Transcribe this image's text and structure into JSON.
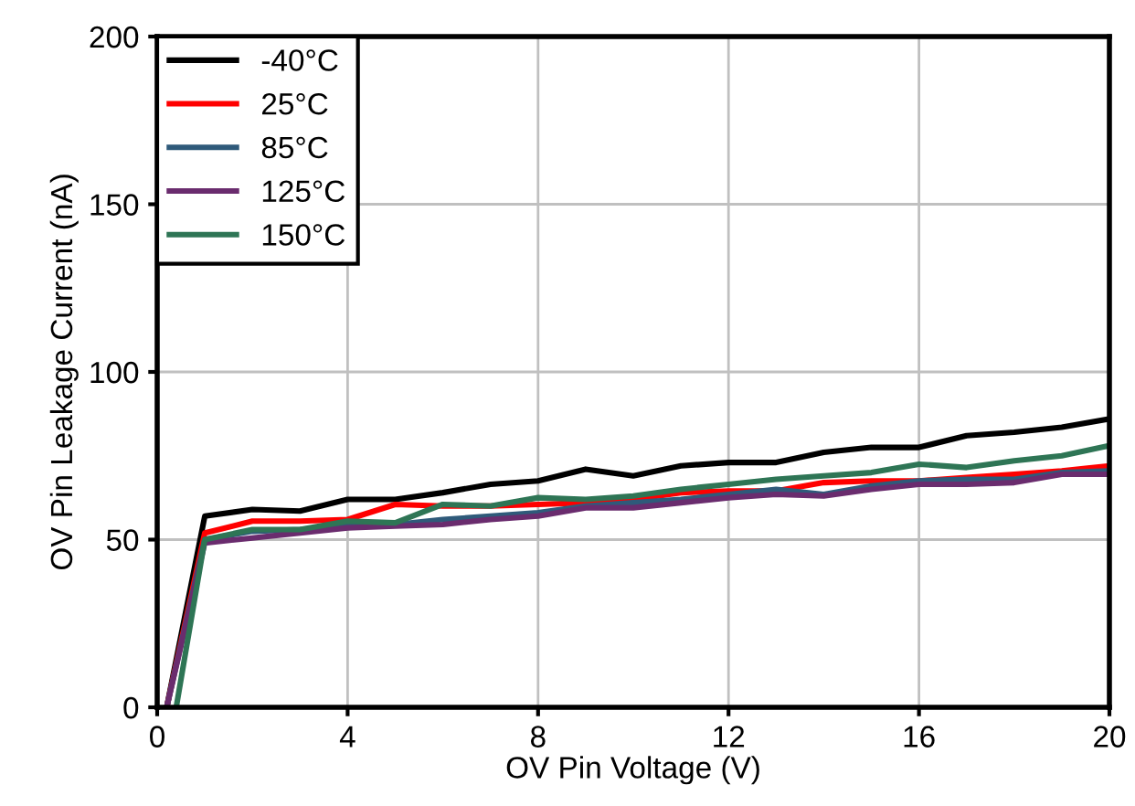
{
  "chart_data": {
    "type": "line",
    "xlabel": "OV Pin Voltage (V)",
    "ylabel": "OV Pin Leakage Current (nA)",
    "x": [
      0.2,
      1,
      2,
      3,
      4,
      5,
      6,
      7,
      8,
      9,
      10,
      11,
      12,
      13,
      14,
      15,
      16,
      17,
      18,
      19,
      20
    ],
    "series": [
      {
        "name": "-40°C",
        "color": "#000000",
        "values": [
          0,
          57,
          59,
          58.5,
          62,
          62,
          64,
          66.5,
          67.5,
          71,
          69,
          72,
          73,
          73,
          76,
          77.5,
          77.5,
          81,
          82,
          83.5,
          86
        ]
      },
      {
        "name": "25°C",
        "color": "#ff0000",
        "values": [
          0,
          52,
          55.5,
          55.5,
          56,
          60.5,
          60,
          60,
          60.5,
          61,
          62,
          64,
          64.5,
          64.5,
          67,
          67.5,
          67.5,
          68.5,
          69.5,
          70.5,
          72
        ]
      },
      {
        "name": "85°C",
        "color": "#2f5a7a",
        "values": [
          0,
          50,
          52.5,
          53,
          54,
          54.5,
          56,
          57,
          58,
          60,
          61,
          62,
          63.5,
          65,
          63.5,
          66,
          67.5,
          68,
          68,
          70,
          70.5
        ]
      },
      {
        "name": "125°C",
        "color": "#6a2c6e",
        "values": [
          0,
          49,
          50.5,
          52,
          53.5,
          54,
          54.5,
          56,
          57,
          59.5,
          59.5,
          61,
          62.5,
          63.5,
          63,
          65,
          66.5,
          66.5,
          67,
          69.5,
          69.5
        ]
      },
      {
        "name": "150°C",
        "color": "#2e7555",
        "x": [
          0.4,
          1,
          2,
          3,
          4,
          5,
          6,
          7,
          8,
          9,
          10,
          11,
          12,
          13,
          14,
          15,
          16,
          17,
          18,
          19,
          20
        ],
        "values": [
          0,
          50,
          53,
          53,
          55.5,
          55,
          60.5,
          60,
          62.5,
          62,
          63,
          65,
          66.5,
          68,
          69,
          70,
          72.5,
          71.5,
          73.5,
          75,
          78
        ]
      }
    ],
    "xlim": [
      0,
      20
    ],
    "ylim": [
      0,
      200
    ],
    "xticks": [
      0,
      4,
      8,
      12,
      16,
      20
    ],
    "yticks": [
      0,
      50,
      100,
      150,
      200
    ],
    "grid": true,
    "legend": "top left"
  }
}
